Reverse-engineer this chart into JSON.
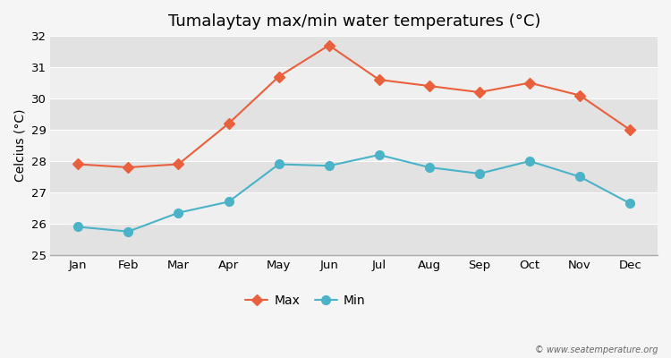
{
  "title": "Tumalaytay max/min water temperatures (°C)",
  "ylabel": "Celcius (°C)",
  "months": [
    "Jan",
    "Feb",
    "Mar",
    "Apr",
    "May",
    "Jun",
    "Jul",
    "Aug",
    "Sep",
    "Oct",
    "Nov",
    "Dec"
  ],
  "max_temps": [
    27.9,
    27.8,
    27.9,
    29.2,
    30.7,
    31.7,
    30.6,
    30.4,
    30.2,
    30.5,
    30.1,
    29.0
  ],
  "min_temps": [
    25.9,
    25.75,
    26.35,
    26.7,
    27.9,
    27.85,
    28.2,
    27.8,
    27.6,
    28.0,
    27.5,
    26.65
  ],
  "max_color": "#e8603c",
  "min_color": "#4ab3c8",
  "bg_color": "#f5f5f5",
  "band_light": "#efefef",
  "band_dark": "#e2e2e2",
  "ylim": [
    25,
    32
  ],
  "yticks": [
    25,
    26,
    27,
    28,
    29,
    30,
    31,
    32
  ],
  "legend_labels": [
    "Max",
    "Min"
  ],
  "watermark": "© www.seatemperature.org",
  "title_fontsize": 13,
  "label_fontsize": 10,
  "tick_fontsize": 9.5
}
